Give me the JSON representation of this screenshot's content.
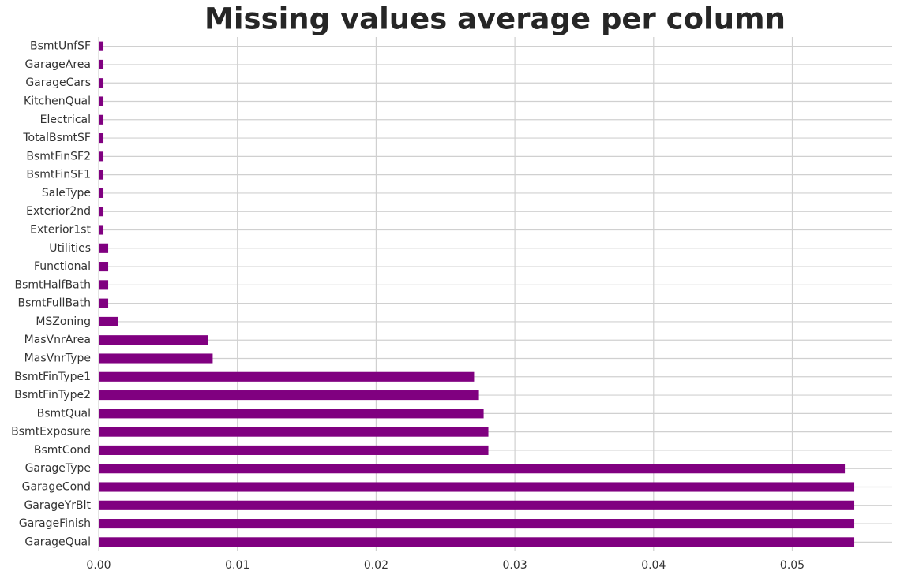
{
  "chart_data": {
    "type": "barh",
    "title": "Missing values average per column",
    "categories": [
      "GarageQual",
      "GarageFinish",
      "GarageYrBlt",
      "GarageCond",
      "GarageType",
      "BsmtCond",
      "BsmtExposure",
      "BsmtQual",
      "BsmtFinType2",
      "BsmtFinType1",
      "MasVnrType",
      "MasVnrArea",
      "MSZoning",
      "BsmtFullBath",
      "BsmtHalfBath",
      "Functional",
      "Utilities",
      "Exterior1st",
      "Exterior2nd",
      "SaleType",
      "BsmtFinSF1",
      "BsmtFinSF2",
      "TotalBsmtSF",
      "Electrical",
      "KitchenQual",
      "GarageCars",
      "GarageArea",
      "BsmtUnfSF"
    ],
    "values": [
      0.05447,
      0.05447,
      0.05447,
      0.05447,
      0.05379,
      0.02809,
      0.02809,
      0.02775,
      0.02741,
      0.02706,
      0.00822,
      0.00788,
      0.00137,
      0.000685,
      0.000685,
      0.000685,
      0.000685,
      0.000343,
      0.000343,
      0.000343,
      0.000343,
      0.000343,
      0.000343,
      0.000343,
      0.000343,
      0.000343,
      0.000343,
      0.000343
    ],
    "color": "#800080",
    "xlim": [
      0,
      0.0572
    ],
    "xticks": [
      {
        "value": 0,
        "label": "0.00"
      },
      0.01,
      0.02,
      0.03,
      0.04,
      0.05
    ],
    "grid": true
  }
}
